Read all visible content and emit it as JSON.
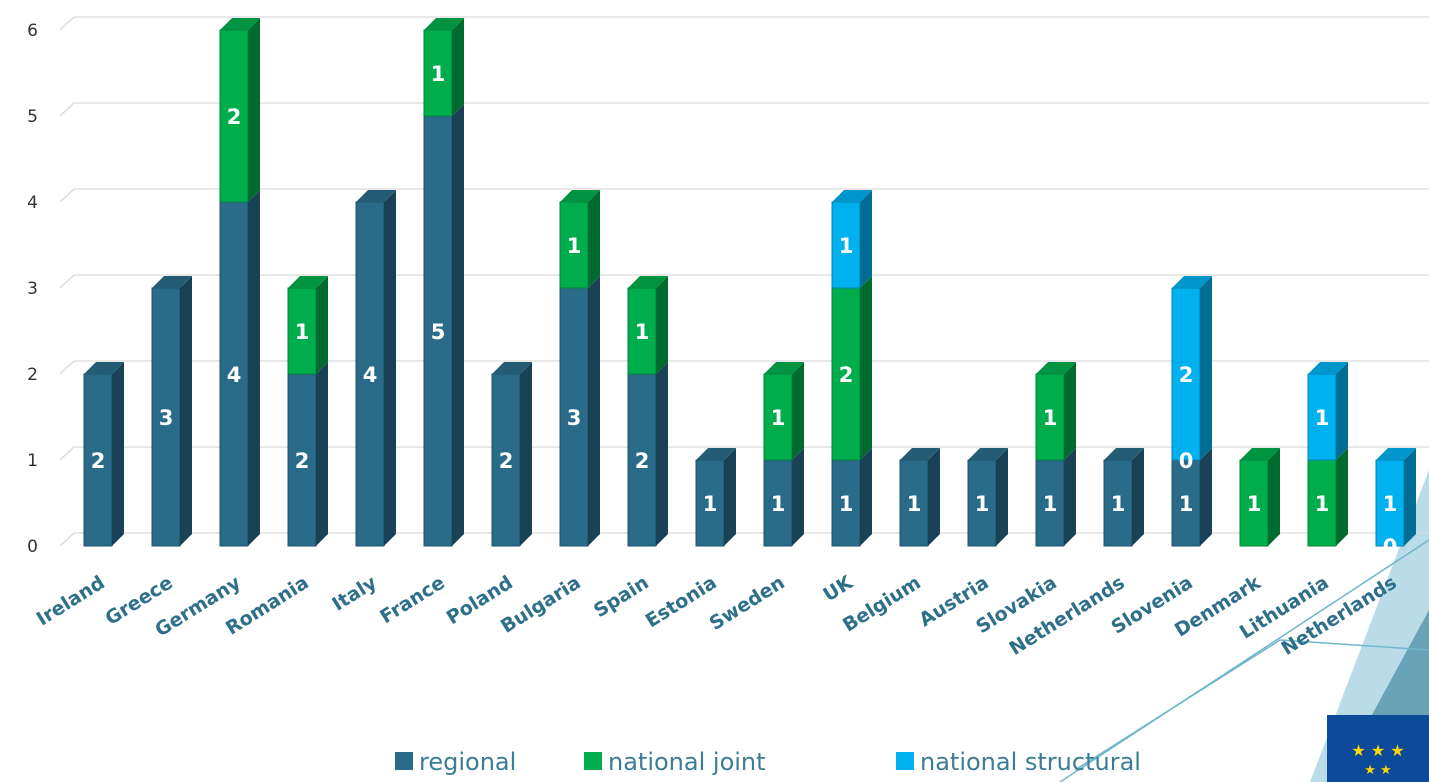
{
  "chart_data": {
    "type": "bar",
    "stacked": true,
    "style": "3d-column",
    "categories": [
      "Ireland",
      "Greece",
      "Germany",
      "Romania",
      "Italy",
      "France",
      "Poland",
      "Bulgaria",
      "Spain",
      "Estonia",
      "Sweden",
      "UK",
      "Belgium",
      "Austria",
      "Slovakia",
      "Netherlands",
      "Slovenia",
      "Denmark",
      "Lithuania",
      "Netherlands"
    ],
    "series": [
      {
        "name": "regional",
        "color": "#2a6b8a",
        "values": [
          2,
          3,
          4,
          2,
          4,
          5,
          2,
          3,
          2,
          1,
          1,
          1,
          1,
          1,
          1,
          1,
          1,
          0,
          0,
          0
        ],
        "labels": [
          "2",
          "3",
          "4",
          "2",
          "4",
          "5",
          "2",
          "3",
          "2",
          "1",
          "1",
          "1",
          "1",
          "1",
          "1",
          "1",
          "1",
          "",
          "",
          ""
        ]
      },
      {
        "name": "national joint",
        "color": "#00ad4c",
        "values": [
          0,
          0,
          2,
          1,
          0,
          1,
          0,
          1,
          1,
          0,
          1,
          2,
          0,
          0,
          1,
          0,
          0,
          1,
          1,
          0
        ],
        "labels": [
          "",
          "",
          "2",
          "1",
          "",
          "1",
          "",
          "1",
          "1",
          "",
          "1",
          "2",
          "",
          "",
          "1",
          "",
          "0",
          "1",
          "1",
          "0"
        ]
      },
      {
        "name": "national structural",
        "color": "#00b0ef",
        "values": [
          0,
          0,
          0,
          0,
          0,
          0,
          0,
          0,
          0,
          0,
          0,
          1,
          0,
          0,
          0,
          0,
          2,
          0,
          1,
          1
        ],
        "labels": [
          "",
          "",
          "",
          "",
          "",
          "",
          "",
          "",
          "",
          "",
          "",
          "1",
          "",
          "",
          "",
          "",
          "2",
          "",
          "1",
          "1"
        ]
      }
    ],
    "ylim": [
      0,
      6
    ],
    "yticks": [
      "0",
      "1",
      "2",
      "3",
      "4",
      "5",
      "6"
    ],
    "grid": true,
    "legend_position": "bottom"
  }
}
